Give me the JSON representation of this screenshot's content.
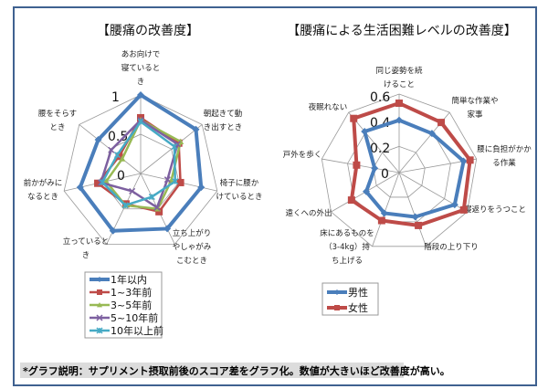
{
  "footnote": "*グラフ説明：サプリメント摂取前後のスコア差をグラフ化。数値が大きいほど改善度が高い。",
  "chart_data": [
    {
      "type": "radar",
      "title": "【腰痛の改善度】",
      "axes": [
        [
          "あお向けで",
          "寝ていると",
          "き"
        ],
        [
          "朝起きて動",
          "き出すとき"
        ],
        [
          "椅子に腰か",
          "けているとき"
        ],
        [
          "立ち上がり",
          "やしゃがみ",
          "こむとき"
        ],
        [
          "立っていると",
          "き"
        ],
        [
          "前かがみに",
          "なるとき"
        ],
        [
          "腰をそらす",
          "とき"
        ]
      ],
      "range": [
        0,
        1
      ],
      "ticks": [
        "0",
        "0.5",
        "1"
      ],
      "grid": true,
      "legend_position": "bottom-left",
      "series": [
        {
          "name": "1年以内",
          "color": "#4a7ebb",
          "marker": "diamond",
          "values": [
            1.0,
            0.9,
            0.79,
            0.78,
            0.81,
            0.79,
            0.69
          ]
        },
        {
          "name": "1~3年前",
          "color": "#be4b48",
          "marker": "square",
          "values": [
            0.71,
            0.62,
            0.52,
            0.54,
            0.43,
            0.56,
            0.35
          ]
        },
        {
          "name": "3~5年前",
          "color": "#98b954",
          "marker": "triangle",
          "values": [
            0.68,
            0.65,
            0.4,
            0.5,
            0.45,
            0.45,
            0.3
          ]
        },
        {
          "name": "5~10年前",
          "color": "#7d60a0",
          "marker": "x",
          "values": [
            0.68,
            0.6,
            0.35,
            0.48,
            0.25,
            0.52,
            0.48
          ]
        },
        {
          "name": "10年以上前",
          "color": "#46aac5",
          "marker": "asterisk",
          "values": [
            0.66,
            0.55,
            0.45,
            0.33,
            0.45,
            0.5,
            0.38
          ]
        }
      ]
    },
    {
      "type": "radar",
      "title": "【腰痛による生活困難レベルの改善度】",
      "axes": [
        [
          "同じ姿勢を続",
          "けること"
        ],
        [
          "簡単な作業や",
          "家事"
        ],
        [
          "腰に負担がかか",
          "る作業"
        ],
        [
          "寝返りをうつこと"
        ],
        [
          "階段の上り下り"
        ],
        [
          "床にあるものを",
          "（3-4kg）持",
          "ち上げる"
        ],
        [
          "遠くへの外出"
        ],
        [
          "戸外を歩く"
        ],
        [
          "夜眠れない"
        ]
      ],
      "range": [
        0,
        0.6
      ],
      "ticks": [
        "0",
        "0.2",
        "0.4",
        "0.6"
      ],
      "grid": true,
      "legend_position": "bottom-right",
      "series": [
        {
          "name": "男性",
          "color": "#4a7ebb",
          "marker": "diamond",
          "values": [
            0.4,
            0.39,
            0.5,
            0.49,
            0.36,
            0.33,
            0.29,
            0.19,
            0.41
          ]
        },
        {
          "name": "女性",
          "color": "#be4b48",
          "marker": "square",
          "values": [
            0.53,
            0.5,
            0.55,
            0.57,
            0.43,
            0.39,
            0.42,
            0.33,
            0.54
          ]
        }
      ]
    }
  ]
}
